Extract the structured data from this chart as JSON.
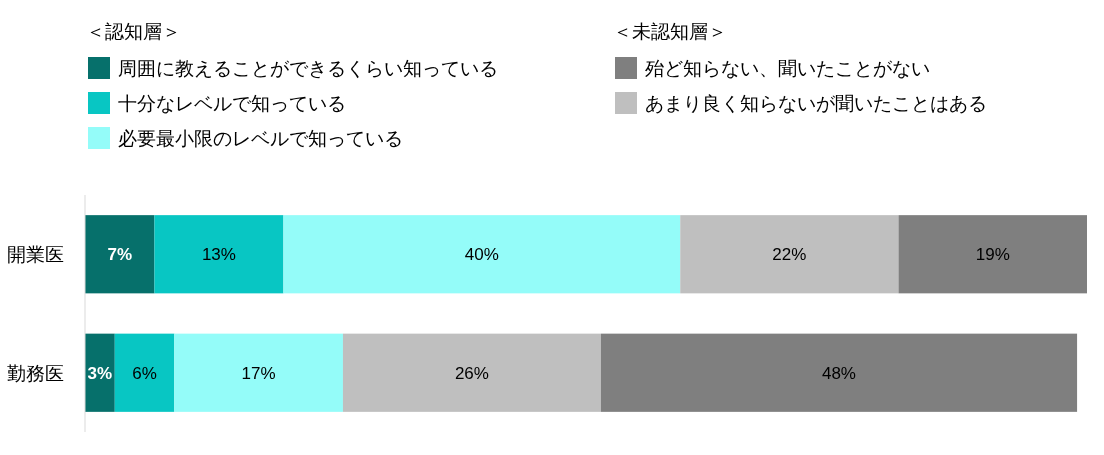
{
  "chart_data": {
    "type": "bar",
    "orientation": "horizontal",
    "stacked": true,
    "categories": [
      "開業医",
      "勤務医"
    ],
    "series": [
      {
        "name": "周囲に教えることができるくらい知っている",
        "color": "#06706b",
        "values": [
          7,
          3
        ],
        "value_labels": [
          "7%",
          "3%"
        ]
      },
      {
        "name": "十分なレベルで知っている",
        "color": "#08c6c3",
        "values": [
          13,
          6
        ],
        "value_labels": [
          "13%",
          "6%"
        ]
      },
      {
        "name": "必要最小限のレベルで知っている",
        "color": "#94fcf9",
        "values": [
          40,
          17
        ],
        "value_labels": [
          "40%",
          "17%"
        ]
      },
      {
        "name": "あまり良く知らないが聞いたことはある",
        "color": "#bfbfbf",
        "values": [
          22,
          26
        ],
        "value_labels": [
          "22%",
          "26%"
        ]
      },
      {
        "name": "殆ど知らない、聞いたことがない",
        "color": "#7f7f7f",
        "values": [
          19,
          48
        ],
        "value_labels": [
          "19%",
          "48%"
        ]
      }
    ],
    "annotations": [
      "＜認知層＞",
      "＜未認知層＞"
    ],
    "legend": "top",
    "tick_labels": "y"
  }
}
